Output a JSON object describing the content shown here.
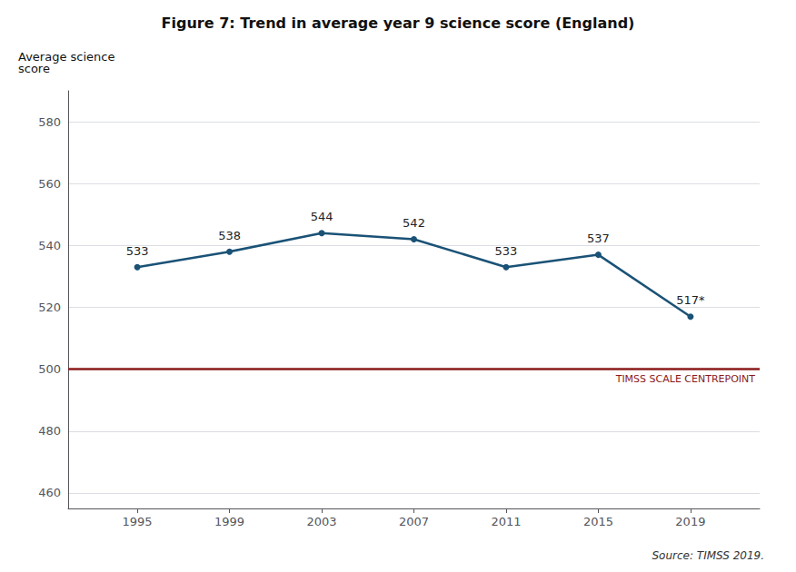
{
  "chart_data": {
    "type": "line",
    "title": "Figure 7: Trend in average year 9 science score (England)",
    "ylabel_lines": [
      "Average science",
      "score"
    ],
    "x": [
      1995,
      1999,
      2003,
      2007,
      2011,
      2015,
      2019
    ],
    "values": [
      533,
      538,
      544,
      542,
      533,
      537,
      517
    ],
    "value_labels": [
      "533",
      "538",
      "544",
      "542",
      "533",
      "537",
      "517*"
    ],
    "data_labels": true,
    "color": "#1a5276",
    "marker": "circle",
    "xlim": [
      1992,
      2022
    ],
    "xticks": [
      1995,
      1999,
      2003,
      2007,
      2011,
      2015,
      2019
    ],
    "ylim": [
      455,
      590
    ],
    "yticks": [
      460,
      480,
      500,
      520,
      540,
      560,
      580
    ],
    "grid": true,
    "reference_line": {
      "y": 500,
      "label": "TIMSS SCALE CENTREPOINT",
      "color": "#8b1a1a"
    },
    "source": "Source: TIMSS 2019."
  }
}
